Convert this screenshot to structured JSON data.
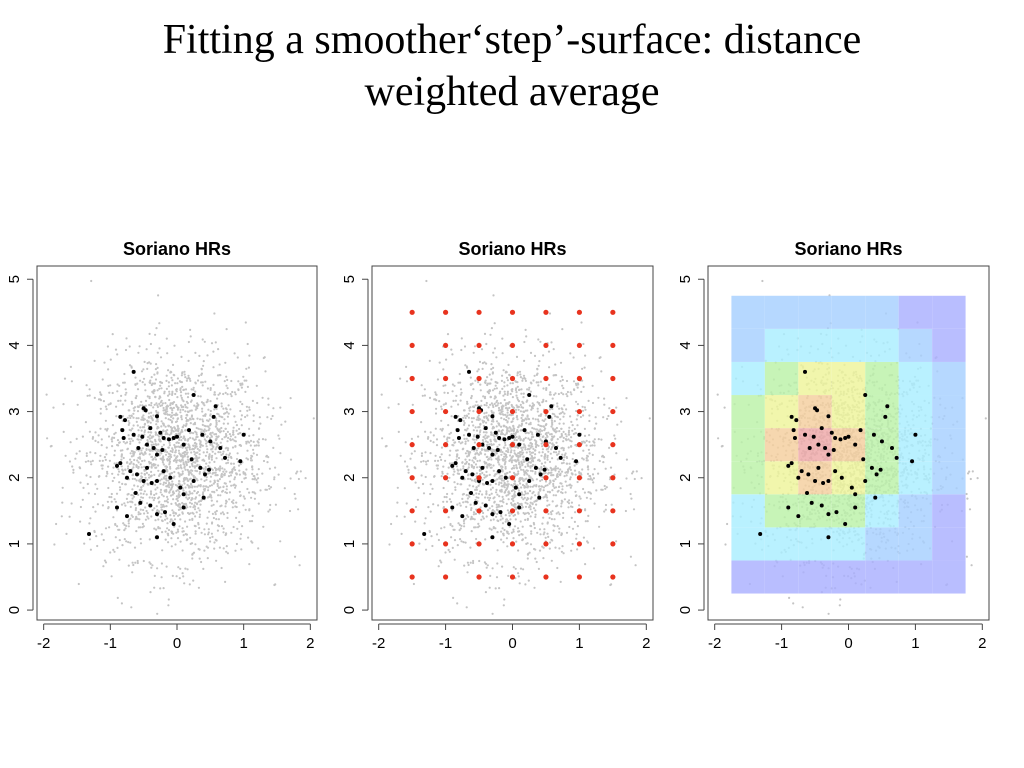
{
  "title": {
    "line1": "Fitting a smoother‘step’-surface: distance",
    "line2": "weighted average"
  },
  "colors": {
    "background_points": "#c4c4c4",
    "foreground_points": "#000000",
    "grid_points": "#e8331e",
    "tile_palette": [
      "#aab0ff",
      "#a7d0ff",
      "#aaeeff",
      "#bbf2a8",
      "#eef59a",
      "#f5cf9e",
      "#eea8a8"
    ]
  },
  "chart_data": [
    {
      "type": "scatter",
      "title": "Soriano HRs",
      "xlim": [
        -2.1,
        2.1
      ],
      "ylim": [
        -0.15,
        5.2
      ],
      "xticks": [
        -2,
        -1,
        0,
        1,
        2
      ],
      "yticks": [
        0,
        1,
        2,
        3,
        4,
        5
      ],
      "background_cloud": {
        "center": [
          0,
          2.3
        ],
        "sd": [
          0.65,
          0.75
        ],
        "n": 2200
      },
      "points": [
        [
          -0.65,
          3.6
        ],
        [
          -0.85,
          2.92
        ],
        [
          -0.78,
          2.87
        ],
        [
          -0.82,
          2.72
        ],
        [
          -0.8,
          2.6
        ],
        [
          -0.65,
          2.65
        ],
        [
          -0.58,
          2.45
        ],
        [
          -0.52,
          2.62
        ],
        [
          -0.45,
          2.5
        ],
        [
          -0.4,
          2.75
        ],
        [
          -0.5,
          3.05
        ],
        [
          -0.47,
          3.02
        ],
        [
          -0.3,
          2.93
        ],
        [
          -0.25,
          2.68
        ],
        [
          -0.35,
          2.45
        ],
        [
          -0.3,
          2.35
        ],
        [
          -0.2,
          2.6
        ],
        [
          -0.12,
          2.58
        ],
        [
          -0.05,
          2.6
        ],
        [
          0.0,
          2.62
        ],
        [
          0.1,
          2.5
        ],
        [
          0.18,
          2.72
        ],
        [
          0.25,
          3.25
        ],
        [
          0.38,
          2.65
        ],
        [
          0.5,
          2.55
        ],
        [
          0.55,
          2.92
        ],
        [
          0.58,
          3.08
        ],
        [
          0.65,
          2.45
        ],
        [
          0.72,
          2.3
        ],
        [
          0.95,
          2.25
        ],
        [
          1.0,
          2.65
        ],
        [
          -0.9,
          2.18
        ],
        [
          -0.85,
          2.22
        ],
        [
          -0.75,
          2.0
        ],
        [
          -0.7,
          2.1
        ],
        [
          -0.6,
          2.05
        ],
        [
          -0.5,
          1.95
        ],
        [
          -0.45,
          2.15
        ],
        [
          -0.38,
          1.92
        ],
        [
          -0.3,
          1.95
        ],
        [
          -0.2,
          2.1
        ],
        [
          -0.1,
          2.0
        ],
        [
          0.05,
          1.85
        ],
        [
          0.1,
          1.75
        ],
        [
          0.25,
          1.95
        ],
        [
          0.35,
          2.15
        ],
        [
          0.42,
          2.05
        ],
        [
          0.48,
          2.12
        ],
        [
          -0.9,
          1.55
        ],
        [
          -0.75,
          1.42
        ],
        [
          -0.55,
          1.62
        ],
        [
          -0.4,
          1.58
        ],
        [
          -0.3,
          1.45
        ],
        [
          -0.18,
          1.48
        ],
        [
          -0.05,
          1.3
        ],
        [
          -0.3,
          1.1
        ],
        [
          0.1,
          1.55
        ],
        [
          0.4,
          1.7
        ],
        [
          -1.32,
          1.15
        ],
        [
          -0.62,
          1.77
        ],
        [
          -0.22,
          2.42
        ],
        [
          0.22,
          2.28
        ]
      ]
    },
    {
      "type": "scatter",
      "title": "Soriano HRs",
      "xlim": [
        -2.1,
        2.1
      ],
      "ylim": [
        -0.15,
        5.2
      ],
      "xticks": [
        -2,
        -1,
        0,
        1,
        2
      ],
      "yticks": [
        0,
        1,
        2,
        3,
        4,
        5
      ],
      "grid_x": [
        -1.5,
        -1.0,
        -0.5,
        0.0,
        0.5,
        1.0,
        1.5
      ],
      "grid_y": [
        0.5,
        1.0,
        1.5,
        2.0,
        2.5,
        3.0,
        3.5,
        4.0,
        4.5
      ],
      "same_points_as_panel": 1
    },
    {
      "type": "heatmap",
      "title": "Soriano HRs",
      "xlim": [
        -2.1,
        2.1
      ],
      "ylim": [
        -0.15,
        5.2
      ],
      "xticks": [
        -2,
        -1,
        0,
        1,
        2
      ],
      "yticks": [
        0,
        1,
        2,
        3,
        4,
        5
      ],
      "x_edges": [
        -1.75,
        -1.25,
        -0.75,
        -0.25,
        0.25,
        0.75,
        1.25,
        1.75
      ],
      "y_edges": [
        0.25,
        0.75,
        1.25,
        1.75,
        2.25,
        2.75,
        3.25,
        3.75,
        4.25,
        4.75
      ],
      "levels_bottom_to_top": [
        [
          0,
          0,
          0,
          0,
          0,
          0,
          0
        ],
        [
          2,
          2,
          2,
          2,
          1,
          1,
          0
        ],
        [
          2,
          3,
          3,
          3,
          2,
          1,
          0
        ],
        [
          3,
          4,
          5,
          4,
          3,
          2,
          1
        ],
        [
          3,
          5,
          6,
          5,
          3,
          2,
          1
        ],
        [
          3,
          4,
          5,
          4,
          3,
          2,
          1
        ],
        [
          2,
          3,
          4,
          4,
          3,
          2,
          1
        ],
        [
          1,
          2,
          2,
          2,
          2,
          1,
          0
        ],
        [
          1,
          1,
          1,
          1,
          1,
          0,
          0
        ]
      ],
      "same_points_as_panel": 1
    }
  ]
}
